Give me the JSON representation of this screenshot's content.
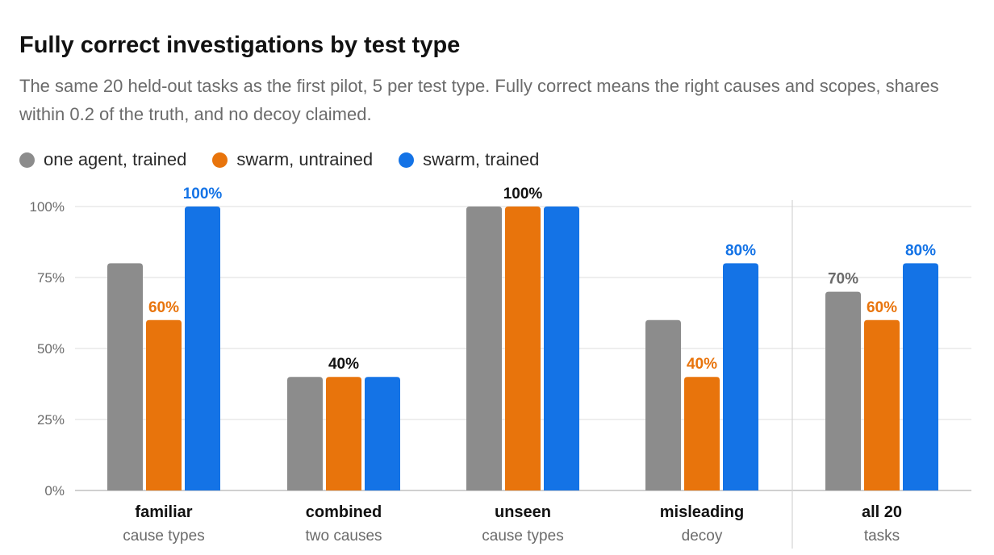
{
  "title": "Fully correct investigations by test type",
  "subtitle": "The same 20 held-out tasks as the first pilot, 5 per test type. Fully correct means the right causes and scopes, shares within 0.2 of the truth, and no decoy claimed.",
  "legend": [
    {
      "label": "one agent, trained",
      "color": "#8c8c8c"
    },
    {
      "label": "swarm, untrained",
      "color": "#e8740c"
    },
    {
      "label": "swarm, trained",
      "color": "#1473e6"
    }
  ],
  "chart_data": {
    "type": "bar",
    "title": "Fully correct investigations by test type",
    "ylim": [
      0,
      100
    ],
    "y_ticks": [
      "0%",
      "25%",
      "50%",
      "75%",
      "100%"
    ],
    "y_tick_values": [
      0,
      25,
      50,
      75,
      100
    ],
    "grid": true,
    "legend_position": "top-left",
    "categories": [
      {
        "name": "familiar",
        "sub": "cause types"
      },
      {
        "name": "combined",
        "sub": "two causes"
      },
      {
        "name": "unseen",
        "sub": "cause types"
      },
      {
        "name": "misleading",
        "sub": "decoy"
      },
      {
        "name": "all 20",
        "sub": "tasks"
      }
    ],
    "series": [
      {
        "name": "one agent, trained",
        "color": "#8c8c8c",
        "values": [
          80,
          40,
          100,
          60,
          70
        ]
      },
      {
        "name": "swarm, untrained",
        "color": "#e8740c",
        "values": [
          60,
          40,
          100,
          40,
          60
        ]
      },
      {
        "name": "swarm, trained",
        "color": "#1473e6",
        "values": [
          100,
          40,
          100,
          80,
          80
        ]
      }
    ],
    "annotations": [
      {
        "category": 0,
        "series": 1,
        "text": "60%",
        "color": "#e8740c"
      },
      {
        "category": 0,
        "series": 2,
        "text": "100%",
        "color": "#1473e6"
      },
      {
        "category": 1,
        "series": 1,
        "text": "40%",
        "color": "#111111"
      },
      {
        "category": 2,
        "series": 1,
        "text": "100%",
        "color": "#111111"
      },
      {
        "category": 3,
        "series": 1,
        "text": "40%",
        "color": "#e8740c"
      },
      {
        "category": 3,
        "series": 2,
        "text": "80%",
        "color": "#1473e6"
      },
      {
        "category": 4,
        "series": 0,
        "text": "70%",
        "color": "#6b6b6b"
      },
      {
        "category": 4,
        "series": 1,
        "text": "60%",
        "color": "#e8740c"
      },
      {
        "category": 4,
        "series": 2,
        "text": "80%",
        "color": "#1473e6"
      }
    ]
  }
}
